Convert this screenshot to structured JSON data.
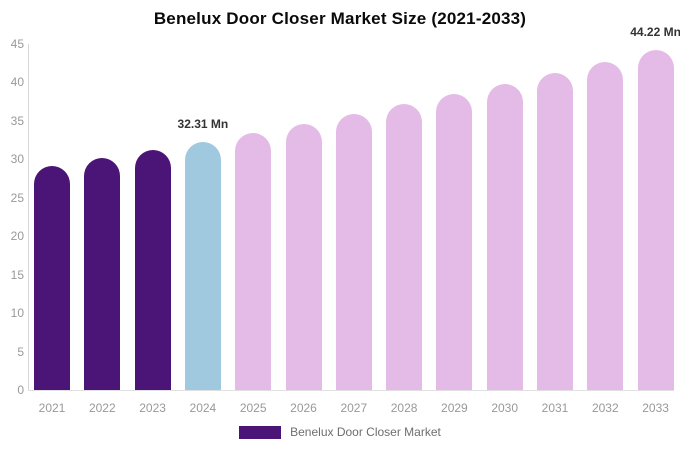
{
  "chart_data": {
    "type": "bar",
    "title": "Benelux Door Closer Market Size (2021-2033)",
    "unit": "Mn",
    "categories": [
      "2021",
      "2022",
      "2023",
      "2024",
      "2025",
      "2026",
      "2027",
      "2028",
      "2029",
      "2030",
      "2031",
      "2032",
      "2033"
    ],
    "values": [
      29.1,
      30.14,
      31.21,
      32.31,
      33.46,
      34.65,
      35.88,
      37.15,
      38.47,
      39.84,
      41.26,
      42.72,
      44.22
    ],
    "bar_colors": [
      "#4B1477",
      "#4B1477",
      "#4B1477",
      "#A0C8DE",
      "#E4BBE7",
      "#E4BBE7",
      "#E4BBE7",
      "#E4BBE7",
      "#E4BBE7",
      "#E4BBE7",
      "#E4BBE7",
      "#E4BBE7",
      "#E4BBE7"
    ],
    "xlabel": "",
    "ylabel": "",
    "ylim": [
      0,
      45
    ],
    "ytick_step": 5,
    "ytick_labels": [
      "0",
      "5",
      "10",
      "15",
      "20",
      "25",
      "30",
      "35",
      "40",
      "45"
    ],
    "grid": false,
    "legend_position": "bottom",
    "legend": [
      {
        "label": "Benelux Door Closer Market",
        "color": "#4B1477"
      }
    ],
    "annotations": [
      {
        "category": "2024",
        "text": "32.31 Mn"
      },
      {
        "category": "2033",
        "text": "44.22 Mn"
      }
    ],
    "colors": {
      "historical": "#4B1477",
      "current_year": "#A0C8DE",
      "forecast": "#E4BBE7",
      "axis_line": "#d6d6d6",
      "tick_text": "#999999",
      "annotation_text": "#333333",
      "legend_text": "#6e6e6e"
    }
  }
}
